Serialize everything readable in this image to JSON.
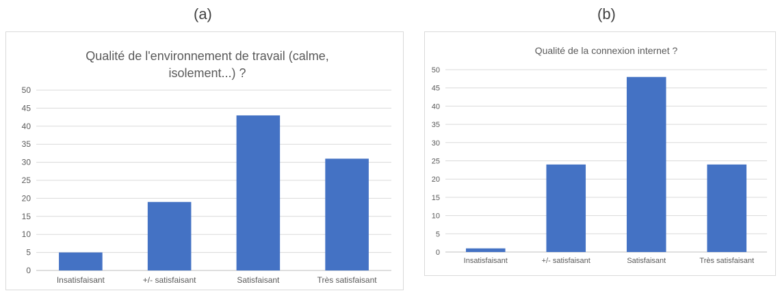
{
  "panel_labels": [
    "(a)",
    "(b)"
  ],
  "chart_data": [
    {
      "type": "bar",
      "title_lines": [
        "Qualité de l'environnement de travail (calme,",
        "isolement...) ?"
      ],
      "categories": [
        "Insatisfaisant",
        "+/- satisfaisant",
        "Satisfaisant",
        "Très satisfaisant"
      ],
      "values": [
        5,
        19,
        43,
        31
      ],
      "ylim": [
        0,
        50
      ],
      "yticks": [
        0,
        5,
        10,
        15,
        20,
        25,
        30,
        35,
        40,
        45,
        50
      ],
      "grid": true,
      "color": "#4472c4"
    },
    {
      "type": "bar",
      "title_lines": [
        "Qualité de la connexion internet ?"
      ],
      "categories": [
        "Insatisfaisant",
        "+/- satisfaisant",
        "Satisfaisant",
        "Très satisfaisant"
      ],
      "values": [
        1,
        24,
        48,
        24
      ],
      "ylim": [
        0,
        50
      ],
      "yticks": [
        0,
        5,
        10,
        15,
        20,
        25,
        30,
        35,
        40,
        45,
        50
      ],
      "grid": true,
      "color": "#4472c4"
    }
  ]
}
